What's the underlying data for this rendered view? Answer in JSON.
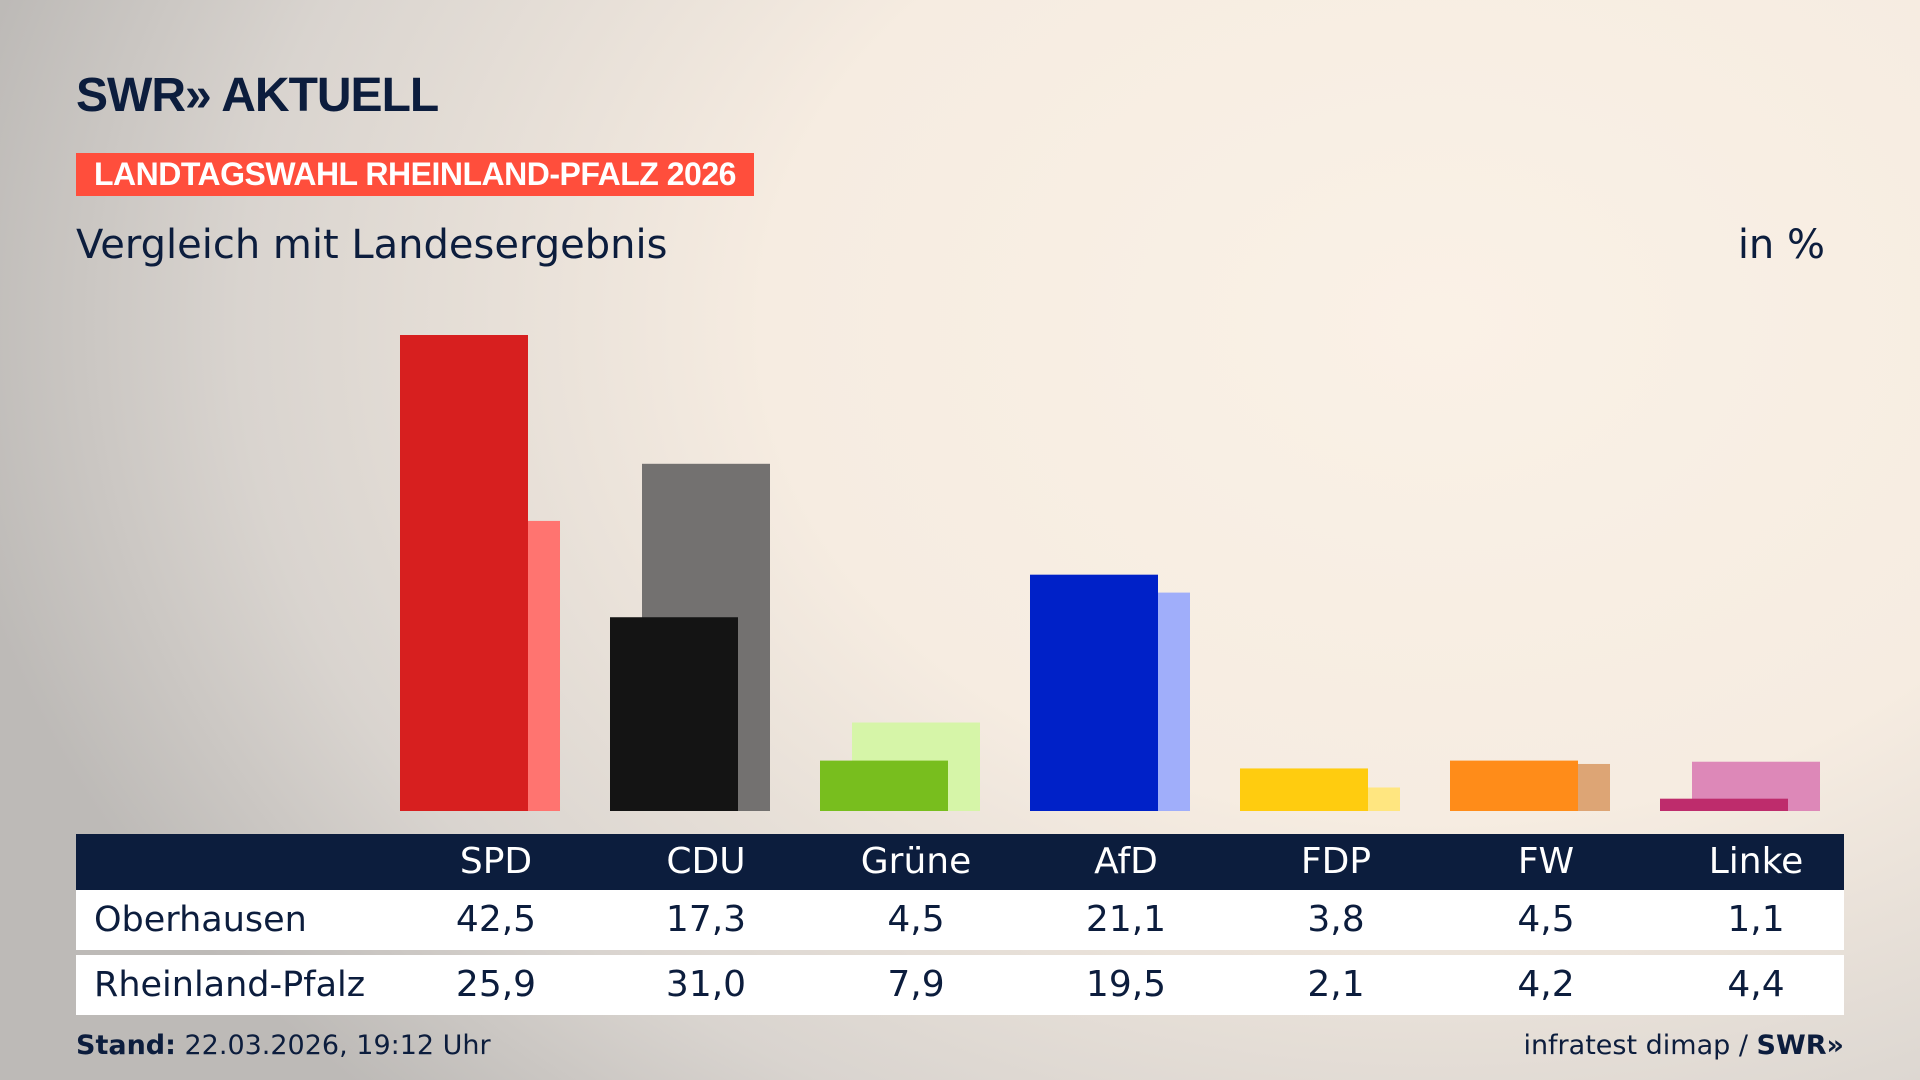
{
  "logo": "SWR» AKTUELL",
  "kicker": "LANDTAGSWAHL RHEINLAND-PFALZ 2026",
  "subtitle": "Vergleich mit Landesergebnis",
  "unit": "in %",
  "footer": {
    "stand_label": "Stand:",
    "stand_value": " 22.03.2026, 19:12 Uhr",
    "source": "infratest dimap / ",
    "source_logo": "SWR»"
  },
  "chart_data": {
    "type": "bar",
    "categories": [
      "SPD",
      "CDU",
      "Grüne",
      "AfD",
      "FDP",
      "FW",
      "Linke"
    ],
    "series": [
      {
        "name": "Oberhausen",
        "values": [
          42.5,
          17.3,
          4.5,
          21.1,
          3.8,
          4.5,
          1.1
        ],
        "display": [
          "42,5",
          "17,3",
          "4,5",
          "21,1",
          "3,8",
          "4,5",
          "1,1"
        ]
      },
      {
        "name": "Rheinland-Pfalz",
        "values": [
          25.9,
          31.0,
          7.9,
          19.5,
          2.1,
          4.2,
          4.4
        ],
        "display": [
          "25,9",
          "31,0",
          "7,9",
          "19,5",
          "2,1",
          "4,2",
          "4,4"
        ]
      }
    ],
    "colors_dark": [
      "#d71f1f",
      "#141414",
      "#78be1e",
      "#0021c8",
      "#ffcc0f",
      "#ff8c19",
      "#be2c6c"
    ],
    "colors_light": [
      "#ff7470",
      "#737170",
      "#d6f5a8",
      "#a0aefa",
      "#ffe680",
      "#dda575",
      "#dd88b8"
    ],
    "unit": "%",
    "grid": false
  }
}
